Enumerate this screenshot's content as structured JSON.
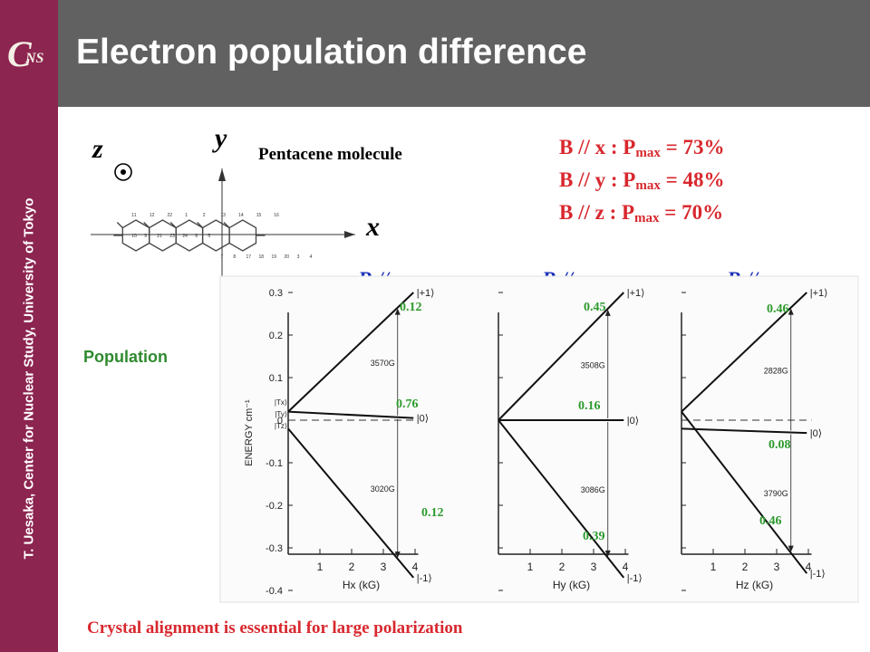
{
  "sidebar": {
    "text": "T. Uesaka, Center for Nuclear Study, University of Tokyo"
  },
  "logo": {
    "main": "C",
    "sub": "NS"
  },
  "header": {
    "title": "Electron population difference"
  },
  "molecule": {
    "title": "Pentacene molecule",
    "axis_z": "z",
    "axis_y": "y",
    "axis_x": "x",
    "atom_numbers": [
      "11",
      "12",
      "22",
      "1",
      "2",
      "13",
      "14",
      "15",
      "16",
      "10",
      "9",
      "21",
      "23",
      "24",
      "6",
      "5",
      "7",
      "8",
      "17",
      "18",
      "19",
      "20",
      "3",
      "4"
    ]
  },
  "pmax": {
    "x": {
      "prefix": "B // x : P",
      "sub": "max",
      "suffix": " = 73%"
    },
    "y": {
      "prefix": "B // y : P",
      "sub": "max",
      "suffix": " = 48%"
    },
    "z": {
      "prefix": "B // z : P",
      "sub": "max",
      "suffix": " = 70%"
    }
  },
  "population_label": "Population",
  "panels": {
    "x": {
      "orientation": "B // x",
      "top": "0.12",
      "mid": "0.76",
      "bottom": "0.12",
      "upper_gap": "3570G",
      "lower_gap": "3020G",
      "xlabel": "Hx (kG)"
    },
    "y": {
      "orientation": "B // y",
      "top": "0.45",
      "mid": "0.16",
      "bottom": "0.39",
      "upper_gap": "3508G",
      "lower_gap": "3086G",
      "xlabel": "Hy (kG)"
    },
    "z": {
      "orientation": "B // z",
      "top": "0.46",
      "mid": "0.08",
      "bottom": "0.46",
      "upper_gap": "2828G",
      "lower_gap": "3790G",
      "xlabel": "Hz (kG)"
    }
  },
  "plot_common": {
    "ylabel": "ENERGY cm⁻¹",
    "yticks": [
      "0.3",
      "0.2",
      "0.1",
      "0",
      "-0.1",
      "-0.2",
      "-0.3",
      "-0.4"
    ],
    "xticks": [
      "1",
      "2",
      "3",
      "4"
    ],
    "state_labels": [
      "|+1⟩",
      "|0⟩",
      "|-1⟩"
    ],
    "zero_field_labels": [
      "|Tx⟩",
      "|Ty⟩",
      "|Tz⟩"
    ]
  },
  "footer": {
    "text": "Crystal alignment is essential for large polarization"
  },
  "colors": {
    "sidebar": "#8c2550",
    "header": "#616161",
    "pmax": "#d8282e",
    "orientation": "#1a30b8",
    "population": "#2d9a2d"
  }
}
